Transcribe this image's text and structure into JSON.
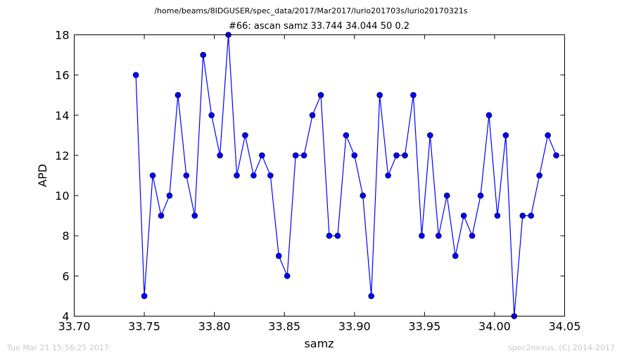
{
  "header": {
    "file_path": "/home/beams/8IDGUSER/spec_data/2017/Mar2017/lurio201703s/lurio20170321s"
  },
  "footer": {
    "timestamp": "Tue Mar 21 15:56:25 2017",
    "credit": "spec2nexus, (C) 2014-2017"
  },
  "chart_data": {
    "type": "line",
    "title": "#66: ascan  samz 33.744 34.044  50 0.2",
    "xlabel": "samz",
    "ylabel": "APD",
    "xlim": [
      33.7,
      34.05
    ],
    "ylim": [
      4,
      18
    ],
    "xticks": [
      "33.70",
      "33.75",
      "33.80",
      "33.85",
      "33.90",
      "33.95",
      "34.00",
      "34.05"
    ],
    "yticks": [
      "4",
      "6",
      "8",
      "10",
      "12",
      "14",
      "16",
      "18"
    ],
    "grid": false,
    "markers": true,
    "color": "#0000ff",
    "series": [
      {
        "x": [
          33.744,
          33.75,
          33.756,
          33.762,
          33.768,
          33.774,
          33.78,
          33.786,
          33.792,
          33.798,
          33.804,
          33.81,
          33.816,
          33.822,
          33.828,
          33.834,
          33.84,
          33.846,
          33.852,
          33.858,
          33.864,
          33.87,
          33.876,
          33.882,
          33.888,
          33.894,
          33.9,
          33.906,
          33.912,
          33.918,
          33.924,
          33.93,
          33.936,
          33.942,
          33.948,
          33.954,
          33.96,
          33.966,
          33.972,
          33.978,
          33.984,
          33.99,
          33.996,
          34.002,
          34.008,
          34.014,
          34.02,
          34.026,
          34.032,
          34.038,
          34.044
        ],
        "y": [
          16,
          5,
          11,
          9,
          10,
          15,
          11,
          9,
          17,
          14,
          12,
          18,
          11,
          13,
          11,
          12,
          11,
          7,
          6,
          12,
          12,
          14,
          15,
          8,
          8,
          13,
          12,
          10,
          5,
          15,
          11,
          12,
          12,
          15,
          8,
          13,
          8,
          10,
          7,
          9,
          8,
          10,
          14,
          9,
          13,
          4,
          9,
          9,
          11,
          13,
          12
        ]
      }
    ]
  }
}
